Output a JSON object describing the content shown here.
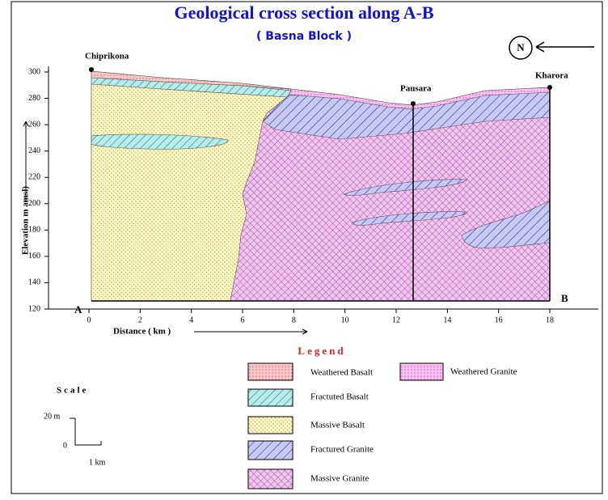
{
  "header": {
    "title": "Geological cross section along A-B",
    "subtitle": "( Basna Block )"
  },
  "north": "N",
  "locations": [
    "Chiprikona",
    "Pausara",
    "Kharora"
  ],
  "section_ends": {
    "start": "A",
    "end": "B"
  },
  "y_axis": {
    "label": "Elevation m amsl)",
    "ticks": [
      120,
      140,
      160,
      180,
      200,
      220,
      240,
      260,
      280,
      300
    ]
  },
  "x_axis": {
    "label": "Distance ( km )",
    "ticks": [
      0,
      2,
      4,
      6,
      8,
      10,
      12,
      14,
      16,
      18
    ]
  },
  "legend": {
    "title": "Legend",
    "items": [
      "Weathered Basalt",
      "Weathered Granite",
      "Fractuted Basalt",
      "Massive Basalt",
      "Fractured Granite",
      "Massive Granite"
    ]
  },
  "scale": {
    "title": "Scale",
    "vertical": "20 m",
    "origin": "0",
    "horizontal": "1 km"
  }
}
